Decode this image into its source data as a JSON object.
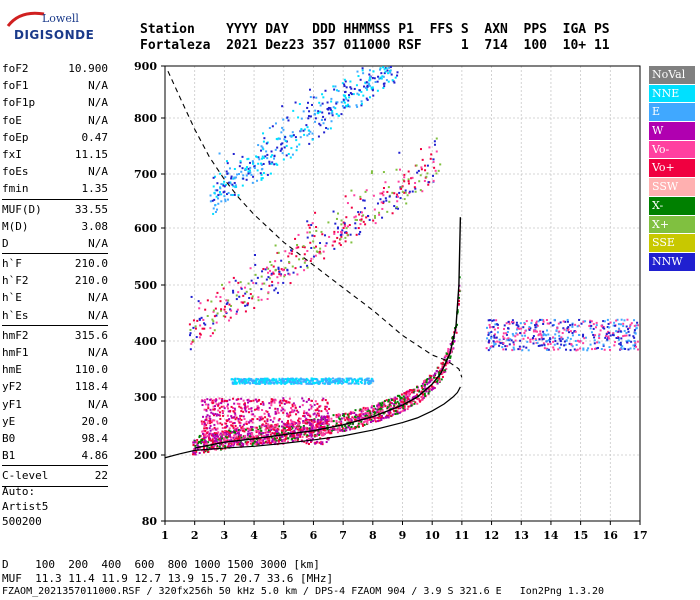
{
  "logo": {
    "brand_top": "Lowell",
    "brand_bottom": "DIGISONDE"
  },
  "header": {
    "line1": "Station    YYYY DAY   DDD HHMMSS P1  FFS S  AXN  PPS  IGA PS",
    "line2": "Fortaleza  2021 Dez23 357 011000 RSF     1  714  100  10+ 11"
  },
  "params": [
    {
      "name": "foF2",
      "value": "10.900"
    },
    {
      "name": "foF1",
      "value": "N/A"
    },
    {
      "name": "foF1p",
      "value": "N/A"
    },
    {
      "name": "foE",
      "value": "N/A"
    },
    {
      "name": "foEp",
      "value": "0.47"
    },
    {
      "name": "fxI",
      "value": "11.15"
    },
    {
      "name": "foEs",
      "value": "N/A"
    },
    {
      "name": "fmin",
      "value": "1.35"
    },
    {
      "sep": true
    },
    {
      "name": "MUF(D)",
      "value": "33.55"
    },
    {
      "name": "M(D)",
      "value": "3.08"
    },
    {
      "name": "D",
      "value": "N/A"
    },
    {
      "sep": true
    },
    {
      "name": "h`F",
      "value": "210.0"
    },
    {
      "name": "h`F2",
      "value": "210.0"
    },
    {
      "name": "h`E",
      "value": "N/A"
    },
    {
      "name": "h`Es",
      "value": "N/A"
    },
    {
      "sep": true
    },
    {
      "name": "hmF2",
      "value": "315.6"
    },
    {
      "name": "hmF1",
      "value": "N/A"
    },
    {
      "name": "hmE",
      "value": "110.0"
    },
    {
      "name": "yF2",
      "value": "118.4"
    },
    {
      "name": "yF1",
      "value": "N/A"
    },
    {
      "name": "yE",
      "value": "20.0"
    },
    {
      "name": "B0",
      "value": "98.4"
    },
    {
      "name": "B1",
      "value": "4.86"
    },
    {
      "sep": true
    },
    {
      "name": "C-level",
      "value": "22"
    },
    {
      "sep": true
    }
  ],
  "auto": {
    "line1": "Auto:",
    "line2": "Artist5",
    "line3": "500200"
  },
  "legend": [
    {
      "label": "NoVal",
      "color": "#808080"
    },
    {
      "label": "NNE",
      "color": "#00e0ff"
    },
    {
      "label": "E",
      "color": "#40a8ff"
    },
    {
      "label": "W",
      "color": "#b000b0"
    },
    {
      "label": "Vo-",
      "color": "#ff40a0"
    },
    {
      "label": "Vo+",
      "color": "#f00040"
    },
    {
      "label": "SSW",
      "color": "#ffb0b0"
    },
    {
      "label": "X-",
      "color": "#008000"
    },
    {
      "label": "X+",
      "color": "#80c040"
    },
    {
      "label": "SSE",
      "color": "#c8c800"
    },
    {
      "label": "NNW",
      "color": "#2020d0"
    }
  ],
  "footer": {
    "line1": "D    100  200  400  600  800 1000 1500 3000 [km]",
    "line2": "MUF  11.3 11.4 11.9 12.7 13.9 15.7 20.7 33.6 [MHz]",
    "line3": "FZAOM_2021357011000.RSF / 320fx256h 50 kHz 5.0 km / DPS-4 FZAOM 904 / 3.9 S 321.6 E   Ion2Png 1.3.20"
  },
  "chart_data": {
    "type": "scatter",
    "title": "",
    "xlabel": "",
    "ylabel": "",
    "xlim": [
      1,
      17
    ],
    "ylim": [
      80,
      900
    ],
    "x_ticks": [
      "1",
      "2",
      "3",
      "4",
      "5",
      "6",
      "7",
      "8",
      "9",
      "10",
      "11",
      "12",
      "13",
      "14",
      "15",
      "16",
      "17"
    ],
    "y_ticks": [
      "80",
      "200",
      "300",
      "400",
      "500",
      "600",
      "700",
      "800",
      "900"
    ],
    "grid": true,
    "profile_curve": {
      "x": [
        1.0,
        1.5,
        2.0,
        3.0,
        4.0,
        5.0,
        6.0,
        7.0,
        8.0,
        9.0,
        9.5,
        10.0,
        10.4,
        10.7,
        10.85,
        10.95
      ],
      "y": [
        195,
        202,
        208,
        212,
        215,
        220,
        226,
        233,
        243,
        256,
        264,
        276,
        288,
        300,
        308,
        318
      ]
    },
    "trace_curve": {
      "x": [
        2.0,
        3.0,
        4.0,
        5.0,
        6.0,
        7.0,
        8.0,
        9.0,
        9.5,
        10.0,
        10.3,
        10.6,
        10.8,
        10.9,
        10.95
      ],
      "y": [
        212,
        222,
        228,
        235,
        242,
        252,
        266,
        286,
        300,
        323,
        343,
        378,
        425,
        500,
        620
      ]
    },
    "muf_curve": {
      "x": [
        1.1,
        1.5,
        2.0,
        2.5,
        3.0,
        3.5,
        4.0,
        5.0,
        6.0,
        7.0,
        8.0,
        9.0,
        10.0,
        10.5,
        10.9,
        11.0
      ],
      "y": [
        890,
        840,
        780,
        730,
        690,
        655,
        625,
        575,
        535,
        495,
        455,
        410,
        375,
        365,
        350,
        335
      ]
    },
    "echo_regions": [
      {
        "xmin": 1.9,
        "xmax": 10.9,
        "baseline": "trace",
        "spread": 45,
        "colors": [
          "#f00040",
          "#b000b0",
          "#ff40a0",
          "#008000"
        ]
      },
      {
        "xmin": 2.2,
        "xmax": 6.5,
        "ymin": 220,
        "ymax": 300,
        "colors": [
          "#b000b0",
          "#ff40a0",
          "#f00040"
        ]
      },
      {
        "xmin": 3.2,
        "xmax": 8.0,
        "ymin": 325,
        "ymax": 335,
        "colors": [
          "#40a8ff",
          "#00e0ff"
        ]
      },
      {
        "xmin": 11.8,
        "xmax": 16.9,
        "ymin": 385,
        "ymax": 440,
        "colors": [
          "#2020d0",
          "#40a8ff",
          "#ff40a0"
        ]
      },
      {
        "xmin": 1.8,
        "xmax": 10.3,
        "ymin": 380,
        "ymax": 720,
        "colors": [
          "#2020d0",
          "#ff40a0",
          "#f00040",
          "#80c040"
        ]
      },
      {
        "xmin": 2.5,
        "xmax": 8.8,
        "ymin": 640,
        "ymax": 900,
        "colors": [
          "#40a8ff",
          "#00e0ff",
          "#2020d0"
        ]
      }
    ]
  }
}
